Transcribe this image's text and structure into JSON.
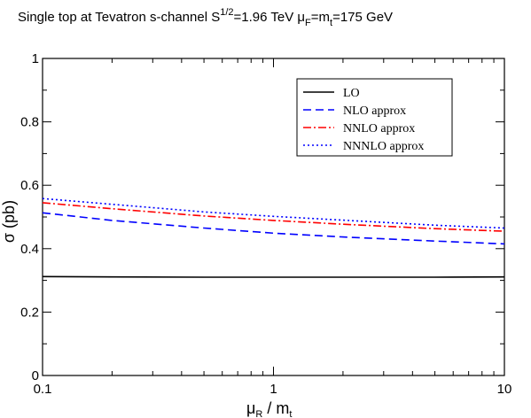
{
  "chart_data": {
    "type": "line",
    "title": {
      "prefix": "Single top at Tevatron  s-channel  S",
      "sqrt_exp": "1/2",
      "energy": "=1.96 TeV  μ",
      "mu_sub": "F",
      "mid": "=m",
      "m_sub": "t",
      "suffix": "=175 GeV"
    },
    "xlabel": {
      "main": "μ",
      "sub": "R",
      "rest": " / m",
      "rest_sub": "t"
    },
    "ylabel": "σ (pb)",
    "xscale": "log",
    "xlim": [
      0.1,
      10
    ],
    "ylim": [
      0,
      1
    ],
    "x_ticks": [
      {
        "value": 0.1,
        "label": "0.1"
      },
      {
        "value": 1,
        "label": "1"
      },
      {
        "value": 10,
        "label": "10"
      }
    ],
    "y_ticks": [
      {
        "value": 0,
        "label": "0"
      },
      {
        "value": 0.2,
        "label": "0.2"
      },
      {
        "value": 0.4,
        "label": "0.4"
      },
      {
        "value": 0.6,
        "label": "0.6"
      },
      {
        "value": 0.8,
        "label": "0.8"
      },
      {
        "value": 1,
        "label": "1"
      }
    ],
    "grid": false,
    "legend_position": "top-right",
    "x": [
      0.1,
      0.2,
      0.5,
      1,
      2,
      5,
      10
    ],
    "series": [
      {
        "name": "LO",
        "color": "#000000",
        "dash": "solid",
        "values": [
          0.312,
          0.311,
          0.31,
          0.31,
          0.31,
          0.31,
          0.311
        ]
      },
      {
        "name": "NLO approx",
        "color": "#0000ff",
        "dash": "dashed",
        "values": [
          0.513,
          0.489,
          0.465,
          0.449,
          0.437,
          0.424,
          0.415
        ]
      },
      {
        "name": "NNLO approx",
        "color": "#ff0000",
        "dash": "dash-dot",
        "values": [
          0.545,
          0.526,
          0.503,
          0.489,
          0.477,
          0.463,
          0.455
        ]
      },
      {
        "name": "NNNLO approx",
        "color": "#0000ff",
        "dash": "dotted",
        "values": [
          0.558,
          0.54,
          0.516,
          0.502,
          0.49,
          0.474,
          0.465
        ]
      }
    ]
  }
}
